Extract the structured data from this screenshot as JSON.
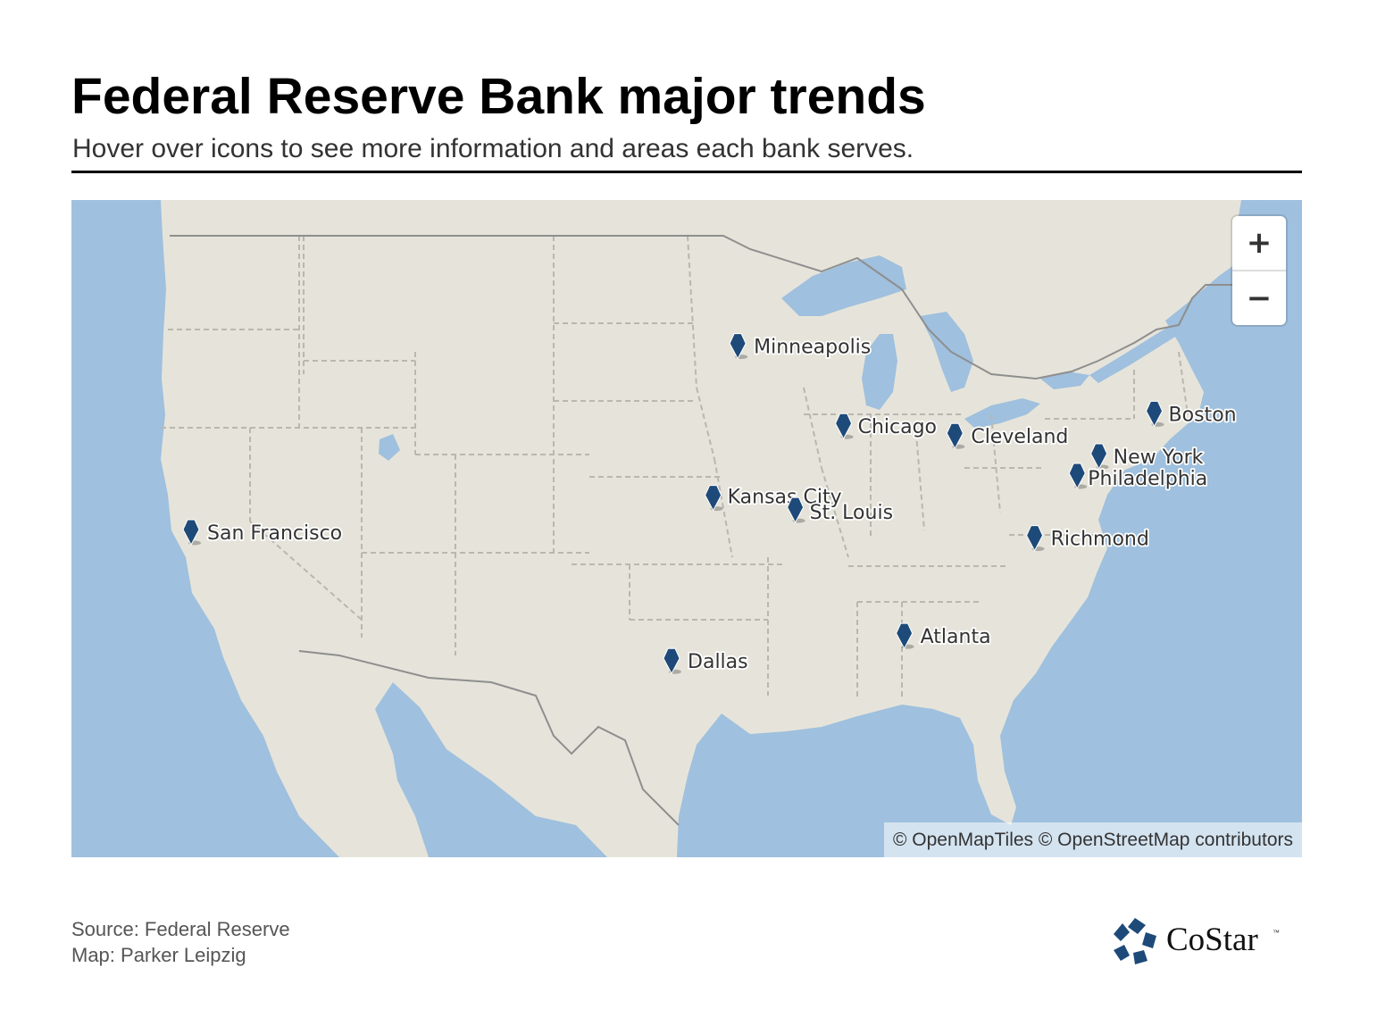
{
  "header": {
    "title": "Federal Reserve Bank major trends",
    "subtitle": "Hover over icons to see more information and areas each bank serves."
  },
  "map": {
    "colors": {
      "water": "#9fc0de",
      "land": "#e6e4da",
      "marker": "#1e4a7a",
      "state_border": "#b9b7ae",
      "country_border": "#8e8e8e"
    },
    "banks": [
      {
        "id": "minneapolis",
        "name": "Minneapolis",
        "lat": 44.98,
        "lon": -93.27
      },
      {
        "id": "chicago",
        "name": "Chicago",
        "lat": 41.88,
        "lon": -87.63
      },
      {
        "id": "cleveland",
        "name": "Cleveland",
        "lat": 41.5,
        "lon": -81.69
      },
      {
        "id": "boston",
        "name": "Boston",
        "lat": 42.36,
        "lon": -71.06
      },
      {
        "id": "new-york",
        "name": "New York",
        "lat": 40.71,
        "lon": -74.01
      },
      {
        "id": "philadelphia",
        "name": "Philadelphia",
        "lat": 39.95,
        "lon": -75.17
      },
      {
        "id": "kansas-city",
        "name": "Kansas City",
        "lat": 39.1,
        "lon": -94.58
      },
      {
        "id": "st-louis",
        "name": "St. Louis",
        "lat": 38.63,
        "lon": -90.2
      },
      {
        "id": "san-francisco",
        "name": "San Francisco",
        "lat": 37.77,
        "lon": -122.42
      },
      {
        "id": "richmond",
        "name": "Richmond",
        "lat": 37.54,
        "lon": -77.44
      },
      {
        "id": "atlanta",
        "name": "Atlanta",
        "lat": 33.75,
        "lon": -84.39
      },
      {
        "id": "dallas",
        "name": "Dallas",
        "lat": 32.78,
        "lon": -96.8
      }
    ],
    "zoom": {
      "in_label": "+",
      "out_label": "−"
    },
    "attribution": "© OpenMapTiles © OpenStreetMap contributors"
  },
  "footer": {
    "source": "Source: Federal Reserve",
    "credit": "Map: Parker Leipzig"
  },
  "logo": {
    "wordmark": "CoStar",
    "tm": "™",
    "icon": "star-pinwheel-icon"
  }
}
